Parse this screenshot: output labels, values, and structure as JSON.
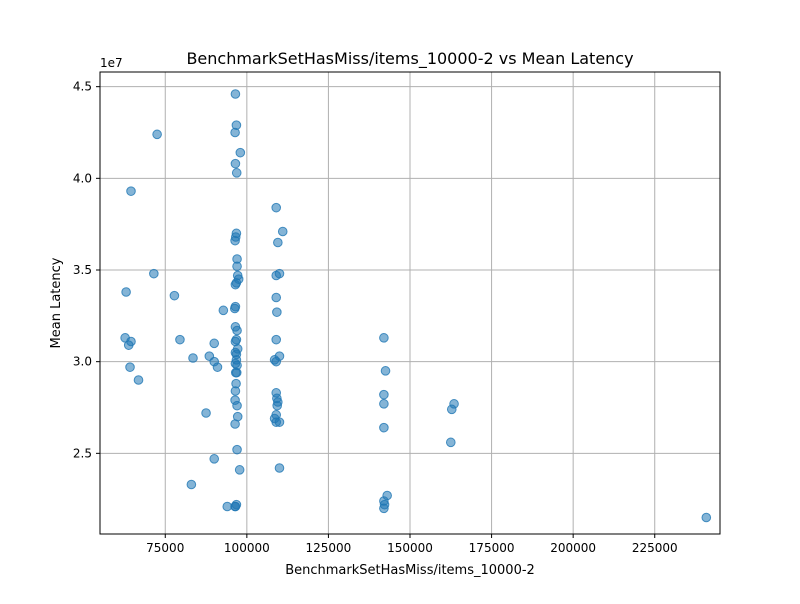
{
  "chart_data": {
    "type": "scatter",
    "title": "BenchmarkSetHasMiss/items_10000-2 vs Mean Latency",
    "xlabel": "BenchmarkSetHasMiss/items_10000-2",
    "ylabel": "Mean Latency",
    "y_offset_label": "1e7",
    "xlim": [
      55000,
      245000
    ],
    "ylim": [
      20600000,
      45800000
    ],
    "x_ticks": [
      75000,
      100000,
      125000,
      150000,
      175000,
      200000,
      225000
    ],
    "x_tick_labels": [
      "75000",
      "100000",
      "125000",
      "150000",
      "175000",
      "200000",
      "225000"
    ],
    "y_ticks": [
      25000000,
      30000000,
      35000000,
      40000000,
      45000000
    ],
    "y_tick_labels": [
      "2.5",
      "3.0",
      "3.5",
      "4.0",
      "4.5"
    ],
    "grid": true,
    "point_color": "#1f77b4",
    "point_alpha": 0.55,
    "points": [
      [
        96500,
        44600000
      ],
      [
        96800,
        42900000
      ],
      [
        96400,
        42500000
      ],
      [
        72500,
        42400000
      ],
      [
        98000,
        41400000
      ],
      [
        96500,
        40800000
      ],
      [
        96900,
        40300000
      ],
      [
        64500,
        39300000
      ],
      [
        109000,
        38400000
      ],
      [
        111000,
        37100000
      ],
      [
        96800,
        37000000
      ],
      [
        96600,
        36800000
      ],
      [
        96400,
        36600000
      ],
      [
        109500,
        36500000
      ],
      [
        97000,
        35600000
      ],
      [
        97000,
        35200000
      ],
      [
        71500,
        34800000
      ],
      [
        110000,
        34800000
      ],
      [
        97200,
        34700000
      ],
      [
        97500,
        34500000
      ],
      [
        109000,
        34700000
      ],
      [
        96800,
        34300000
      ],
      [
        96500,
        34200000
      ],
      [
        63000,
        33800000
      ],
      [
        77800,
        33600000
      ],
      [
        109000,
        33500000
      ],
      [
        96500,
        33000000
      ],
      [
        96300,
        32900000
      ],
      [
        92800,
        32800000
      ],
      [
        109200,
        32700000
      ],
      [
        96500,
        31900000
      ],
      [
        97000,
        31700000
      ],
      [
        142000,
        31300000
      ],
      [
        62700,
        31300000
      ],
      [
        79500,
        31200000
      ],
      [
        109000,
        31200000
      ],
      [
        96800,
        31200000
      ],
      [
        96500,
        31100000
      ],
      [
        64500,
        31100000
      ],
      [
        63800,
        30900000
      ],
      [
        90000,
        31000000
      ],
      [
        97200,
        30700000
      ],
      [
        96500,
        30500000
      ],
      [
        96800,
        30400000
      ],
      [
        110000,
        30300000
      ],
      [
        88500,
        30300000
      ],
      [
        83500,
        30200000
      ],
      [
        96800,
        30100000
      ],
      [
        108500,
        30100000
      ],
      [
        90000,
        30000000
      ],
      [
        109000,
        30000000
      ],
      [
        96500,
        29900000
      ],
      [
        97000,
        29800000
      ],
      [
        91000,
        29700000
      ],
      [
        64200,
        29700000
      ],
      [
        142500,
        29500000
      ],
      [
        96600,
        29400000
      ],
      [
        96900,
        29400000
      ],
      [
        66800,
        29000000
      ],
      [
        96700,
        28800000
      ],
      [
        96500,
        28400000
      ],
      [
        109000,
        28300000
      ],
      [
        142000,
        28200000
      ],
      [
        109200,
        28000000
      ],
      [
        96400,
        27900000
      ],
      [
        109500,
        27800000
      ],
      [
        163500,
        27700000
      ],
      [
        142000,
        27700000
      ],
      [
        109300,
        27600000
      ],
      [
        97000,
        27600000
      ],
      [
        162800,
        27400000
      ],
      [
        87500,
        27200000
      ],
      [
        109000,
        27100000
      ],
      [
        97200,
        27000000
      ],
      [
        108500,
        26900000
      ],
      [
        109000,
        26700000
      ],
      [
        110000,
        26700000
      ],
      [
        96400,
        26600000
      ],
      [
        142000,
        26400000
      ],
      [
        162500,
        25600000
      ],
      [
        97000,
        25200000
      ],
      [
        90000,
        24700000
      ],
      [
        110000,
        24200000
      ],
      [
        97800,
        24100000
      ],
      [
        83000,
        23300000
      ],
      [
        143000,
        22700000
      ],
      [
        142000,
        22400000
      ],
      [
        96800,
        22200000
      ],
      [
        96500,
        22100000
      ],
      [
        142200,
        22200000
      ],
      [
        94000,
        22100000
      ],
      [
        96400,
        22100000
      ],
      [
        142000,
        22000000
      ],
      [
        240800,
        21500000
      ]
    ]
  }
}
